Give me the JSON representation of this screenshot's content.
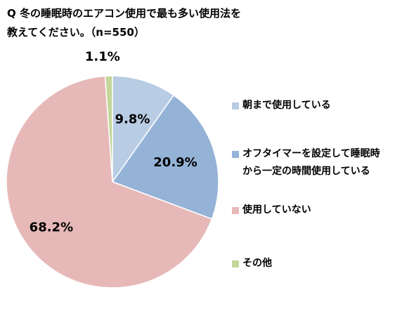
{
  "title": {
    "line1": "Q 冬の睡眠時のエアコン使用で最も多い使用法を",
    "line2": "教えてください。（n=550）"
  },
  "chart_data": {
    "type": "pie",
    "categories": [
      "朝まで使用している",
      "オフタイマーを設定して睡眠時から一定の時間使用している",
      "使用していない",
      "その他"
    ],
    "values": [
      9.8,
      20.9,
      68.2,
      1.1
    ],
    "value_labels": [
      "9.8%",
      "20.9%",
      "68.2%",
      "1.1%"
    ],
    "colors": [
      "#b8cce4",
      "#95b3d7",
      "#e6b9b8",
      "#c4d79b"
    ],
    "legend_placement": "right",
    "legend": [
      {
        "lines": [
          "朝まで使用している"
        ],
        "color": "#b8cce4"
      },
      {
        "lines": [
          "オフタイマーを設定して睡眠時",
          "から一定の時間使用している"
        ],
        "color": "#95b3d7"
      },
      {
        "lines": [
          "使用していない"
        ],
        "color": "#e6b9b8"
      },
      {
        "lines": [
          "その他"
        ],
        "color": "#c4d79b"
      }
    ]
  }
}
